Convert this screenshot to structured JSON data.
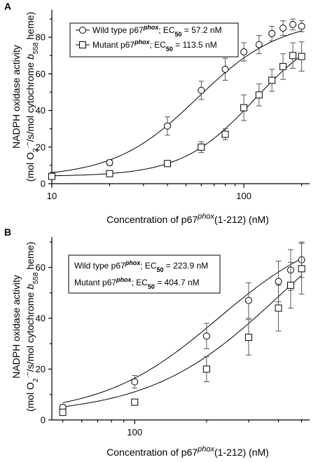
{
  "chart_data": [
    {
      "type": "scatter",
      "panel_label": "A",
      "xscale": "log",
      "xlim": [
        10,
        220
      ],
      "ylim": [
        0,
        95
      ],
      "xticks": [
        10,
        100
      ],
      "yticks": [
        0,
        20,
        40,
        60,
        80
      ],
      "xlabel": {
        "main": "Concentration of p67",
        "sup": "phox",
        "tail": "(1-212) (nM)"
      },
      "ylabel": {
        "line1": "NADPH oxidase activity",
        "line2_prefix": "(mol O",
        "line2_sub": "2",
        "line2_sup": "·−",
        "line2_mid": "/s/mol cytochrome ",
        "line2_b": "b",
        "line2_bsub": "558",
        "line2_tail": " heme)"
      },
      "legend": [
        {
          "text_pre": "Wild type p67",
          "text_sup": "phox",
          "text_mid": "; EC",
          "text_sub": "50",
          "text_post": " = 57.2 nM",
          "marker": "circle"
        },
        {
          "text_pre": "Mutant p67",
          "text_sup": "phox",
          "text_mid": "; EC",
          "text_sub": "50",
          "text_post": " = 113.5 nM",
          "marker": "square"
        }
      ],
      "series": [
        {
          "name": "Wild type p67phox",
          "marker": "circle",
          "ec50": 57.2,
          "max": 90,
          "hill": 2.0,
          "base": 3.5,
          "points": [
            [
              10,
              4.5,
              1
            ],
            [
              20,
              11.5,
              1.5
            ],
            [
              40,
              31.5,
              5
            ],
            [
              60,
              51,
              5
            ],
            [
              80,
              62.5,
              6
            ],
            [
              100,
              72,
              5
            ],
            [
              120,
              76,
              5
            ],
            [
              140,
              82,
              4
            ],
            [
              160,
              85,
              4
            ],
            [
              180,
              87,
              3
            ],
            [
              200,
              86,
              3
            ]
          ]
        },
        {
          "name": "Mutant p67phox",
          "marker": "square",
          "ec50": 113.5,
          "max": 88,
          "hill": 2.3,
          "base": 4,
          "points": [
            [
              10,
              4,
              1
            ],
            [
              20,
              5.5,
              1
            ],
            [
              40,
              11,
              1
            ],
            [
              60,
              20,
              3
            ],
            [
              80,
              27,
              3
            ],
            [
              100,
              41.5,
              7
            ],
            [
              120,
              48.5,
              6
            ],
            [
              140,
              56.5,
              6
            ],
            [
              160,
              64,
              7
            ],
            [
              180,
              70,
              7
            ],
            [
              200,
              69.5,
              8
            ]
          ]
        }
      ]
    },
    {
      "type": "scatter",
      "panel_label": "B",
      "xscale": "log",
      "xlim": [
        45,
        540
      ],
      "ylim": [
        0,
        72
      ],
      "xticks": [
        100
      ],
      "yticks": [
        0,
        20,
        40,
        60
      ],
      "xlabel": {
        "main": "Concentration of p67",
        "sup": "phox",
        "tail": "(1-212) (nM)"
      },
      "ylabel": {
        "line1": "NADPH oxidase activity",
        "line2_prefix": "(mol O",
        "line2_sub": "2",
        "line2_sup": "·−",
        "line2_mid": "/s/mol cytochrome ",
        "line2_b": "b",
        "line2_bsub": "558",
        "line2_tail": " heme)"
      },
      "legend": [
        {
          "text_pre": "Wild type p67",
          "text_sup": "phox",
          "text_mid": "; EC",
          "text_sub": "50",
          "text_post": " = 223.9 nM",
          "marker": "none"
        },
        {
          "text_pre": "Mutant p67",
          "text_sup": "phox",
          "text_mid": "; EC",
          "text_sub": "50",
          "text_post": " = 404.7 nM",
          "marker": "none"
        }
      ],
      "series": [
        {
          "name": "Wild type p67phox",
          "marker": "circle",
          "ec50": 223.9,
          "max": 78,
          "hill": 1.8,
          "base": 2,
          "points": [
            [
              50,
              5,
              1
            ],
            [
              100,
              15,
              2.5
            ],
            [
              200,
              33,
              5
            ],
            [
              300,
              47,
              7
            ],
            [
              400,
              54.5,
              8
            ],
            [
              450,
              59,
              8
            ],
            [
              500,
              63,
              7
            ]
          ]
        },
        {
          "name": "Mutant p67phox",
          "marker": "square",
          "ec50": 404.7,
          "max": 96,
          "hill": 1.6,
          "base": 2,
          "points": [
            [
              50,
              3,
              1
            ],
            [
              100,
              7,
              1
            ],
            [
              200,
              20,
              5
            ],
            [
              300,
              32.5,
              7
            ],
            [
              400,
              44,
              9
            ],
            [
              450,
              53,
              9
            ],
            [
              500,
              59.5,
              10
            ]
          ]
        }
      ]
    }
  ]
}
